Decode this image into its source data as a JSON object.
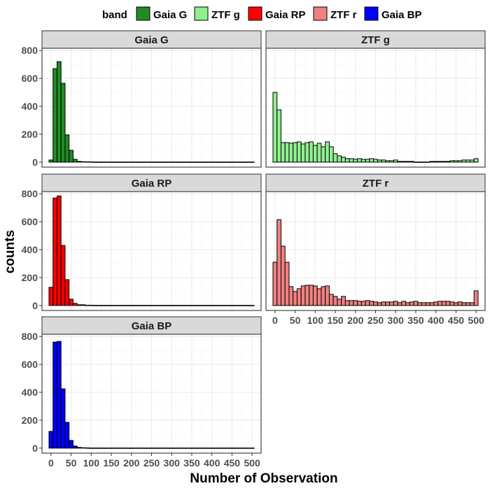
{
  "legend": {
    "title": "band",
    "placement": "top",
    "items": [
      {
        "label": "Gaia G",
        "color": "#228B22"
      },
      {
        "label": "ZTF g",
        "color": "#90EE90"
      },
      {
        "label": "Gaia RP",
        "color": "#FF0000"
      },
      {
        "label": "ZTF r",
        "color": "#F08080"
      },
      {
        "label": "Gaia BP",
        "color": "#0000FF"
      }
    ]
  },
  "axes": {
    "xlabel": "Number of Observation",
    "ylabel": "counts",
    "xlim": [
      0,
      500
    ],
    "ylim": [
      0,
      800
    ],
    "xticks": [
      0,
      50,
      100,
      150,
      200,
      250,
      300,
      350,
      400,
      450,
      500
    ],
    "yticks": [
      0,
      200,
      400,
      600,
      800
    ],
    "grid": true
  },
  "chart_data": [
    {
      "type": "bar",
      "panel": "Gaia G",
      "color": "#228B22",
      "bin_width": 10,
      "x": [
        0,
        10,
        20,
        30,
        40,
        50,
        60,
        70,
        80,
        90,
        100,
        110,
        120,
        130,
        140,
        150,
        160,
        170,
        180,
        190,
        200,
        210,
        220,
        230,
        240,
        250,
        260,
        270,
        280,
        290,
        300,
        310,
        320,
        330,
        340,
        350,
        360,
        370,
        380,
        390,
        400,
        410,
        420,
        430,
        440,
        450,
        460,
        470,
        480,
        490,
        500
      ],
      "values": [
        15,
        670,
        720,
        565,
        195,
        85,
        20,
        5,
        3,
        2,
        2,
        1,
        1,
        1,
        1,
        1,
        1,
        1,
        1,
        1,
        1,
        1,
        1,
        1,
        1,
        1,
        1,
        1,
        1,
        1,
        1,
        1,
        1,
        1,
        1,
        1,
        1,
        1,
        1,
        1,
        1,
        1,
        1,
        1,
        1,
        1,
        1,
        1,
        1,
        1,
        1
      ]
    },
    {
      "type": "bar",
      "panel": "ZTF g",
      "color": "#90EE90",
      "bin_width": 10,
      "x": [
        0,
        10,
        20,
        30,
        40,
        50,
        60,
        70,
        80,
        90,
        100,
        110,
        120,
        130,
        140,
        150,
        160,
        170,
        180,
        190,
        200,
        210,
        220,
        230,
        240,
        250,
        260,
        270,
        280,
        290,
        300,
        310,
        320,
        330,
        340,
        350,
        360,
        370,
        380,
        390,
        400,
        410,
        420,
        430,
        440,
        450,
        460,
        470,
        480,
        490,
        500
      ],
      "values": [
        500,
        375,
        140,
        140,
        135,
        140,
        145,
        130,
        140,
        145,
        120,
        135,
        110,
        145,
        110,
        60,
        45,
        35,
        25,
        25,
        20,
        25,
        20,
        20,
        25,
        20,
        15,
        15,
        10,
        10,
        15,
        5,
        5,
        5,
        5,
        1,
        1,
        1,
        1,
        5,
        5,
        5,
        5,
        5,
        10,
        10,
        10,
        15,
        15,
        15,
        25
      ]
    },
    {
      "type": "bar",
      "panel": "Gaia RP",
      "color": "#FF0000",
      "bin_width": 10,
      "x": [
        0,
        10,
        20,
        30,
        40,
        50,
        60,
        70,
        80,
        90,
        100,
        110,
        120,
        130,
        140,
        150,
        160,
        170,
        180,
        190,
        200,
        210,
        220,
        230,
        240,
        250,
        260,
        270,
        280,
        290,
        300,
        310,
        320,
        330,
        340,
        350,
        360,
        370,
        380,
        390,
        400,
        410,
        420,
        430,
        440,
        450,
        460,
        470,
        480,
        490,
        500
      ],
      "values": [
        130,
        770,
        785,
        430,
        185,
        45,
        15,
        5,
        5,
        2,
        2,
        1,
        1,
        1,
        1,
        1,
        1,
        1,
        1,
        1,
        1,
        1,
        1,
        1,
        1,
        1,
        1,
        1,
        1,
        1,
        1,
        1,
        1,
        1,
        1,
        1,
        1,
        1,
        1,
        1,
        1,
        1,
        1,
        1,
        1,
        1,
        1,
        1,
        1,
        1,
        1
      ]
    },
    {
      "type": "bar",
      "panel": "ZTF r",
      "color": "#F08080",
      "bin_width": 10,
      "x": [
        0,
        10,
        20,
        30,
        40,
        50,
        60,
        70,
        80,
        90,
        100,
        110,
        120,
        130,
        140,
        150,
        160,
        170,
        180,
        190,
        200,
        210,
        220,
        230,
        240,
        250,
        260,
        270,
        280,
        290,
        300,
        310,
        320,
        330,
        340,
        350,
        360,
        370,
        380,
        390,
        400,
        410,
        420,
        430,
        440,
        450,
        460,
        470,
        480,
        490,
        500
      ],
      "values": [
        310,
        615,
        425,
        310,
        135,
        100,
        120,
        140,
        145,
        145,
        140,
        120,
        135,
        140,
        80,
        65,
        45,
        65,
        35,
        35,
        35,
        30,
        30,
        35,
        30,
        25,
        20,
        25,
        25,
        25,
        30,
        20,
        30,
        20,
        25,
        30,
        20,
        20,
        20,
        20,
        25,
        30,
        30,
        30,
        25,
        20,
        25,
        20,
        20,
        20,
        105
      ]
    },
    {
      "type": "bar",
      "panel": "Gaia BP",
      "color": "#0000FF",
      "bin_width": 10,
      "x": [
        0,
        10,
        20,
        30,
        40,
        50,
        60,
        70,
        80,
        90,
        100,
        110,
        120,
        130,
        140,
        150,
        160,
        170,
        180,
        190,
        200,
        210,
        220,
        230,
        240,
        250,
        260,
        270,
        280,
        290,
        300,
        310,
        320,
        330,
        340,
        350,
        360,
        370,
        380,
        390,
        400,
        410,
        420,
        430,
        440,
        450,
        460,
        470,
        480,
        490,
        500
      ],
      "values": [
        120,
        760,
        765,
        425,
        185,
        55,
        15,
        5,
        3,
        2,
        1,
        1,
        1,
        1,
        1,
        1,
        1,
        1,
        1,
        1,
        1,
        1,
        1,
        1,
        1,
        1,
        1,
        1,
        1,
        1,
        1,
        1,
        1,
        1,
        1,
        1,
        1,
        1,
        1,
        1,
        1,
        1,
        1,
        1,
        1,
        1,
        1,
        1,
        1,
        1,
        1
      ]
    }
  ]
}
